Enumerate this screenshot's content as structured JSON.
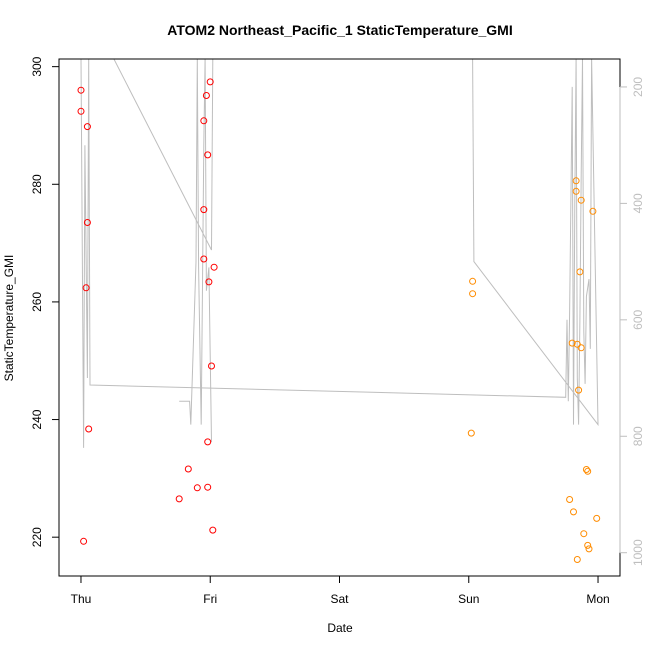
{
  "chart_data": {
    "type": "scatter",
    "title": "ATOM2 Northeast_Pacific_1 StaticTemperature_GMI",
    "xlabel": "Date",
    "ylabel": "StaticTemperature_GMI",
    "x_ticks": [
      {
        "pos": 0,
        "label": "Thu"
      },
      {
        "pos": 1,
        "label": "Fri"
      },
      {
        "pos": 2,
        "label": "Sat"
      },
      {
        "pos": 3,
        "label": "Sun"
      },
      {
        "pos": 4,
        "label": "Mon"
      }
    ],
    "xlim": [
      -0.17,
      4.17
    ],
    "ylim": [
      213.4,
      301.3
    ],
    "y_ticks": [
      220,
      240,
      260,
      280,
      300
    ],
    "right_axis": {
      "ticks": [
        200,
        400,
        600,
        800,
        1000
      ],
      "lim": [
        152,
        1040
      ],
      "reversed": true,
      "color": "#bebebe"
    },
    "colors": {
      "series_1": "#ff0000",
      "series_2": "#ff8c00",
      "profile_line": "#bebebe"
    },
    "series": [
      {
        "color": "#ff0000",
        "points": [
          {
            "x": 0.0,
            "y": 296.0
          },
          {
            "x": 0.0,
            "y": 292.4
          },
          {
            "x": 0.05,
            "y": 289.8
          },
          {
            "x": 0.05,
            "y": 273.5
          },
          {
            "x": 0.04,
            "y": 262.4
          },
          {
            "x": 0.06,
            "y": 238.4
          },
          {
            "x": 0.02,
            "y": 219.3
          },
          {
            "x": 0.97,
            "y": 295.1
          },
          {
            "x": 0.95,
            "y": 290.8
          },
          {
            "x": 0.98,
            "y": 285.0
          },
          {
            "x": 1.0,
            "y": 297.4
          },
          {
            "x": 0.95,
            "y": 275.7
          },
          {
            "x": 0.95,
            "y": 267.3
          },
          {
            "x": 0.99,
            "y": 263.4
          },
          {
            "x": 1.03,
            "y": 265.9
          },
          {
            "x": 1.01,
            "y": 249.1
          },
          {
            "x": 0.98,
            "y": 236.2
          },
          {
            "x": 0.83,
            "y": 231.6
          },
          {
            "x": 0.76,
            "y": 226.5
          },
          {
            "x": 0.9,
            "y": 228.4
          },
          {
            "x": 0.98,
            "y": 228.5
          },
          {
            "x": 1.02,
            "y": 221.2
          }
        ]
      },
      {
        "color": "#ff8c00",
        "points": [
          {
            "x": 3.03,
            "y": 263.5
          },
          {
            "x": 3.03,
            "y": 261.4
          },
          {
            "x": 3.02,
            "y": 237.7
          },
          {
            "x": 3.83,
            "y": 280.6
          },
          {
            "x": 3.83,
            "y": 278.8
          },
          {
            "x": 3.87,
            "y": 277.3
          },
          {
            "x": 3.96,
            "y": 275.4
          },
          {
            "x": 3.86,
            "y": 265.1
          },
          {
            "x": 3.8,
            "y": 253.0
          },
          {
            "x": 3.84,
            "y": 252.8
          },
          {
            "x": 3.87,
            "y": 252.2
          },
          {
            "x": 3.85,
            "y": 245.0
          },
          {
            "x": 3.91,
            "y": 231.5
          },
          {
            "x": 3.92,
            "y": 231.2
          },
          {
            "x": 3.78,
            "y": 226.4
          },
          {
            "x": 3.81,
            "y": 224.3
          },
          {
            "x": 3.99,
            "y": 223.2
          },
          {
            "x": 3.89,
            "y": 220.6
          },
          {
            "x": 3.92,
            "y": 218.6
          },
          {
            "x": 3.93,
            "y": 218.0
          },
          {
            "x": 3.84,
            "y": 216.2
          }
        ]
      }
    ],
    "profile_line_right_axis": [
      {
        "x": 0.0,
        "y": 150
      },
      {
        "x": 0.02,
        "y": 820
      },
      {
        "x": 0.03,
        "y": 300
      },
      {
        "x": 0.05,
        "y": 700
      },
      {
        "x": 0.06,
        "y": 150
      },
      {
        "x": 0.07,
        "y": 712
      },
      {
        "x": 3.75,
        "y": 733
      },
      {
        "x": 3.76,
        "y": 600
      },
      {
        "x": 3.77,
        "y": 740
      },
      {
        "x": 3.78,
        "y": 590
      },
      {
        "x": 3.8,
        "y": 200
      },
      {
        "x": 3.81,
        "y": 780
      },
      {
        "x": 3.82,
        "y": 400
      },
      {
        "x": 3.83,
        "y": 150
      },
      {
        "x": 3.84,
        "y": 700
      },
      {
        "x": 3.85,
        "y": 780
      },
      {
        "x": 3.86,
        "y": 600
      },
      {
        "x": 3.87,
        "y": 350
      },
      {
        "x": 3.88,
        "y": 150
      },
      {
        "x": 3.89,
        "y": 620
      },
      {
        "x": 3.9,
        "y": 710
      },
      {
        "x": 3.91,
        "y": 560
      },
      {
        "x": 3.93,
        "y": 530
      },
      {
        "x": 3.94,
        "y": 650
      },
      {
        "x": 3.95,
        "y": 150
      },
      {
        "x": 4.0,
        "y": 780
      },
      {
        "x": 3.04,
        "y": 500
      },
      {
        "x": 3.03,
        "y": 150
      }
    ],
    "profile_line_right_axis_2": [
      {
        "x": 0.25,
        "y": 150
      },
      {
        "x": 1.01,
        "y": 480
      },
      {
        "x": 1.02,
        "y": 150
      }
    ],
    "profile_line_right_axis_3": [
      {
        "x": 0.76,
        "y": 740
      },
      {
        "x": 0.84,
        "y": 740
      },
      {
        "x": 0.85,
        "y": 780
      },
      {
        "x": 0.89,
        "y": 500
      },
      {
        "x": 0.9,
        "y": 150
      },
      {
        "x": 0.91,
        "y": 510
      },
      {
        "x": 0.93,
        "y": 780
      },
      {
        "x": 0.95,
        "y": 300
      },
      {
        "x": 0.96,
        "y": 150
      },
      {
        "x": 0.97,
        "y": 550
      },
      {
        "x": 0.99,
        "y": 510
      },
      {
        "x": 1.01,
        "y": 810
      }
    ]
  }
}
